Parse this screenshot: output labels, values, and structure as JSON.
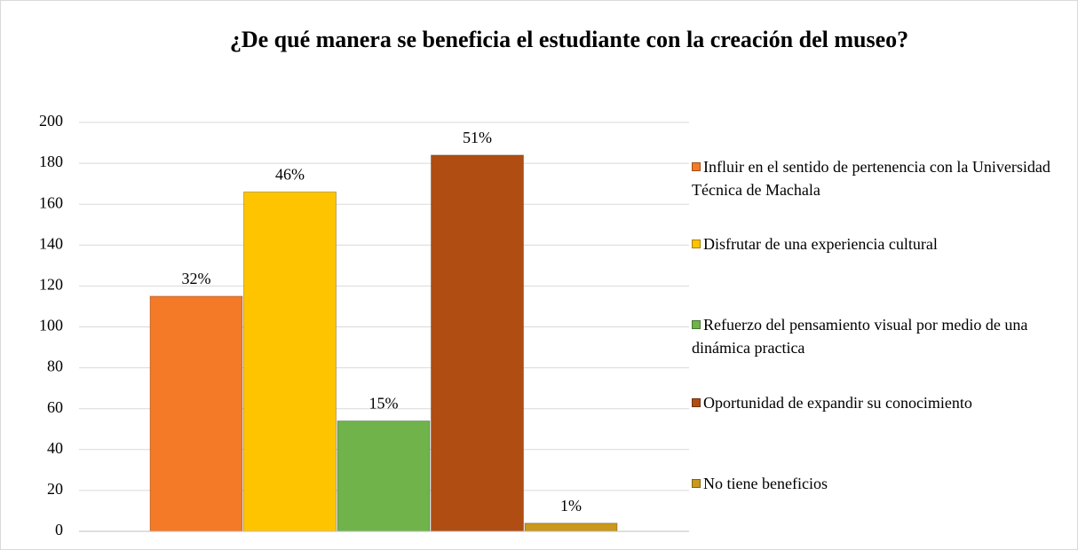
{
  "chart_data": {
    "type": "bar",
    "title": "¿De qué manera se beneficia el estudiante con la creación del museo?",
    "series": [
      {
        "name": "Influir en el sentido de pertenencia con la Universidad Técnica de Machala",
        "color": "#f47a28",
        "values": [
          115
        ]
      },
      {
        "name": "Disfrutar de una experiencia cultural",
        "color": "#ffc400",
        "values": [
          166
        ]
      },
      {
        "name": "Refuerzo del pensamiento visual por medio de una dinámica practica",
        "color": "#6fb34a",
        "values": [
          54
        ]
      },
      {
        "name": "Oportunidad de expandir su conocimiento",
        "color": "#b04d12",
        "values": [
          184
        ]
      },
      {
        "name": "No tiene beneficios",
        "color": "#c9981c",
        "values": [
          4
        ]
      }
    ],
    "annotations": [
      "32%",
      "46%",
      "15%",
      "51%",
      "1%"
    ],
    "ylim": [
      0,
      200
    ],
    "yticks": [
      0,
      20,
      40,
      60,
      80,
      100,
      120,
      140,
      160,
      180,
      200
    ],
    "grid": true,
    "legend": "right"
  }
}
